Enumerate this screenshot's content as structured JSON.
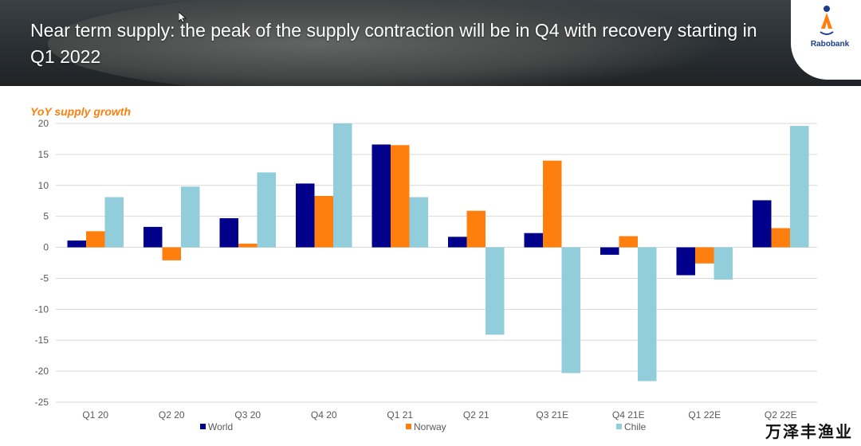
{
  "header": {
    "title": "Near term supply: the peak of the supply contraction will be in Q4 with recovery starting in Q1 2022",
    "logo_text": "Rabobank"
  },
  "watermark": "万泽丰渔业",
  "colors": {
    "world": "#00008b",
    "norway": "#ff7f0e",
    "chile": "#92cddc",
    "title": "#ff7f0e"
  },
  "chart_data": {
    "type": "bar",
    "title": "YoY supply growth",
    "xlabel": "",
    "ylabel": "",
    "ylim": [
      -25,
      20
    ],
    "yticks": [
      20,
      15,
      10,
      5,
      0,
      -5,
      -10,
      -15,
      -20,
      -25
    ],
    "grid": true,
    "legend_position": "bottom",
    "categories": [
      "Q1 20",
      "Q2 20",
      "Q3 20",
      "Q4 20",
      "Q1 21",
      "Q2 21",
      "Q3 21E",
      "Q4 21E",
      "Q1 22E",
      "Q2 22E"
    ],
    "series": [
      {
        "name": "World",
        "color": "#00008b",
        "values": [
          1.1,
          3.3,
          4.7,
          10.3,
          16.6,
          1.7,
          2.3,
          -1.2,
          -4.5,
          7.6
        ]
      },
      {
        "name": "Norway",
        "color": "#ff7f0e",
        "values": [
          2.6,
          -2.1,
          0.6,
          8.3,
          16.5,
          5.9,
          14.0,
          1.8,
          -2.6,
          3.1
        ]
      },
      {
        "name": "Chile",
        "color": "#92cddc",
        "values": [
          8.1,
          9.8,
          12.1,
          20.0,
          8.1,
          -14.1,
          -20.3,
          -21.6,
          -5.2,
          19.6
        ]
      }
    ]
  }
}
